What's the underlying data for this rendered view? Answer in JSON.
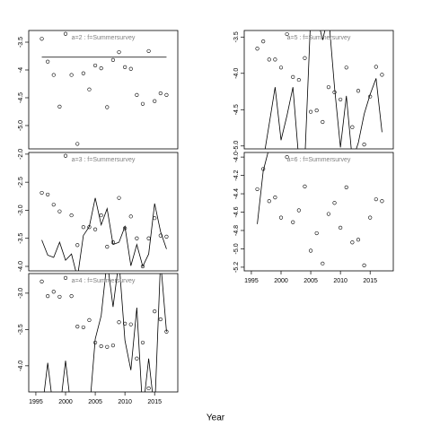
{
  "xlabel": "Year",
  "chart_data": [
    {
      "type": "scatter",
      "title": "a=2 : f=Summersurvey",
      "x": [
        1996,
        1997,
        1998,
        1999,
        2000,
        2001,
        2002,
        2003,
        2004,
        2005,
        2006,
        2007,
        2008,
        2009,
        2010,
        2011,
        2012,
        2013,
        2014,
        2015,
        2016,
        2017
      ],
      "values": [
        -3.44,
        -3.85,
        -4.09,
        -4.66,
        -3.35,
        -4.09,
        -5.33,
        -4.06,
        -4.35,
        -3.92,
        -3.97,
        -4.67,
        -3.82,
        -3.68,
        -3.95,
        -3.98,
        -4.45,
        -4.61,
        -3.66,
        -4.56,
        -4.42,
        -4.45
      ],
      "line_x": [
        1996,
        2017
      ],
      "line_values": [
        -3.77,
        -3.77
      ],
      "xlim": [
        1993.8,
        2018.9
      ],
      "ylim": [
        -5.42,
        -3.29
      ],
      "yticks": [
        -3.5,
        -4,
        {
          "value": -4.5,
          "label": "-4.5"
        },
        {
          "value": -5,
          "label": "-5.0"
        }
      ]
    },
    {
      "type": "scatter",
      "title": "a=3 : f=Summersurvey",
      "x": [
        1996,
        1997,
        1998,
        1999,
        2000,
        2001,
        2002,
        2003,
        2004,
        2005,
        2006,
        2007,
        2008,
        2009,
        2010,
        2011,
        2012,
        2013,
        2014,
        2015,
        2016,
        2017
      ],
      "values": [
        -2.69,
        -2.72,
        -2.9,
        -3.02,
        -2.03,
        -3.09,
        -3.62,
        -3.3,
        -3.3,
        -3.34,
        -3.09,
        -3.65,
        -3.57,
        -2.78,
        -3.32,
        -3.11,
        -3.5,
        -4.0,
        -3.5,
        -3.14,
        -3.45,
        -3.47
      ],
      "line_x": [
        1996,
        1997,
        1998,
        1999,
        2000,
        2001,
        2002,
        2003,
        2004,
        2005,
        2006,
        2007,
        2008,
        2009,
        2010,
        2011,
        2012,
        2013,
        2014,
        2015,
        2016,
        2017
      ],
      "line_values": [
        -3.53,
        -3.8,
        -3.84,
        -3.57,
        -3.89,
        -3.78,
        -4.2,
        -3.45,
        -3.29,
        -2.78,
        -3.26,
        -2.97,
        -3.61,
        -3.57,
        -3.29,
        -3.99,
        -3.61,
        -4.0,
        -3.78,
        -2.88,
        -3.38,
        -3.69
      ],
      "xlim": [
        1993.8,
        2018.9
      ],
      "ylim": [
        -4.08,
        -1.97
      ],
      "yticks": [
        {
          "value": -2,
          "label": "-2.0"
        },
        -2.5,
        {
          "value": -3,
          "label": "-3.0"
        },
        -3.5,
        {
          "value": -4,
          "label": "-4.0"
        }
      ]
    },
    {
      "type": "scatter",
      "title": "a=4 : f=Summersurvey",
      "x": [
        1996,
        1997,
        1998,
        1999,
        2000,
        2001,
        2002,
        2003,
        2004,
        2005,
        2006,
        2007,
        2008,
        2009,
        2010,
        2011,
        2012,
        2013,
        2014,
        2015,
        2016,
        2017
      ],
      "values": [
        -2.84,
        -3.04,
        -2.98,
        -3.05,
        -2.79,
        -3.04,
        -3.46,
        -3.47,
        -3.37,
        -3.68,
        -3.73,
        -3.74,
        -3.72,
        -3.4,
        -3.42,
        -3.43,
        -3.9,
        -3.68,
        -4.31,
        -3.25,
        -3.36,
        -3.53
      ],
      "line_x": [
        1996,
        1997,
        1998,
        1999,
        2000,
        2001,
        2002,
        2003,
        2004,
        2005,
        2006,
        2007,
        2008,
        2009,
        2010,
        2011,
        2012,
        2013,
        2014,
        2015,
        2016,
        2017
      ],
      "line_values": [
        -4.64,
        -3.96,
        -4.64,
        -4.64,
        -3.93,
        -4.64,
        -4.76,
        -4.76,
        -4.64,
        -3.63,
        -3.31,
        -2.55,
        -3.19,
        -2.55,
        -3.65,
        -4.06,
        -3.2,
        -4.64,
        -3.9,
        -4.64,
        -2.55,
        -3.53
      ],
      "xlim": [
        1993.8,
        2018.9
      ],
      "ylim": [
        -4.36,
        -2.73
      ],
      "yticks": [
        {
          "value": -3,
          "label": "-3.0"
        },
        -3.5,
        {
          "value": -4,
          "label": "-4.0"
        }
      ],
      "xticks": [
        1995,
        2000,
        2005,
        2010,
        2015
      ]
    },
    {
      "type": "scatter",
      "title": "a=5 : f=Summersurvey",
      "x": [
        1996,
        1997,
        1998,
        1999,
        2000,
        2001,
        2002,
        2003,
        2004,
        2005,
        2006,
        2007,
        2008,
        2009,
        2010,
        2011,
        2012,
        2013,
        2014,
        2015,
        2016,
        2017
      ],
      "values": [
        -3.66,
        -3.56,
        -3.81,
        -3.81,
        -3.92,
        -3.46,
        -4.05,
        -4.09,
        -3.79,
        -4.53,
        -4.51,
        -4.67,
        -4.19,
        -4.26,
        -4.36,
        -3.92,
        -4.74,
        -4.24,
        -4.98,
        -4.32,
        -3.91,
        -4.02
      ],
      "line_x": [
        1997,
        1998,
        1999,
        2000,
        2001,
        2002,
        2003,
        2004,
        2005,
        2006,
        2007,
        2008,
        2009,
        2010,
        2011,
        2012,
        2013,
        2014,
        2015,
        2016,
        2017
      ],
      "line_values": [
        -5.2,
        -4.7,
        -4.19,
        -4.92,
        -4.58,
        -4.19,
        -5.2,
        -5.2,
        -3.2,
        -3.2,
        -3.54,
        -3.2,
        -4.19,
        -5.02,
        -4.31,
        -5.2,
        -4.96,
        -4.56,
        -4.29,
        -4.07,
        -4.81
      ],
      "xlim": [
        1993.8,
        2018.9
      ],
      "ylim": [
        -5.04,
        -3.41
      ],
      "yticks": [
        -3.5,
        {
          "value": -4,
          "label": "-4.0"
        },
        -4.5,
        {
          "value": -5,
          "label": "-5.0"
        }
      ]
    },
    {
      "type": "scatter",
      "title": "a=6 : f=Summersurvey",
      "x": [
        1996,
        1997,
        1998,
        1999,
        2000,
        2001,
        2002,
        2003,
        2004,
        2005,
        2006,
        2007,
        2008,
        2009,
        2010,
        2011,
        2012,
        2013,
        2014,
        2015,
        2016,
        2017
      ],
      "values": [
        -4.35,
        -4.13,
        -4.48,
        -4.44,
        -4.66,
        -4.0,
        -4.71,
        -4.58,
        -4.32,
        -5.02,
        -4.83,
        -5.16,
        -4.62,
        -4.5,
        -4.77,
        -4.33,
        -4.93,
        -4.9,
        -5.18,
        -4.66,
        -4.46,
        -4.48
      ],
      "line_x": [
        1996,
        1997,
        1998
      ],
      "line_values": [
        -4.73,
        -4.15,
        -3.9
      ],
      "xlim": [
        1993.8,
        2018.9
      ],
      "ylim": [
        -5.24,
        -3.95
      ],
      "yticks": [
        {
          "value": -4,
          "label": "-4.0"
        },
        -4.2,
        -4.4,
        -4.6,
        -4.8,
        {
          "value": -5,
          "label": "-5.0"
        },
        -5.2
      ],
      "xticks": [
        1995,
        2000,
        2005,
        2010,
        2015
      ]
    }
  ]
}
